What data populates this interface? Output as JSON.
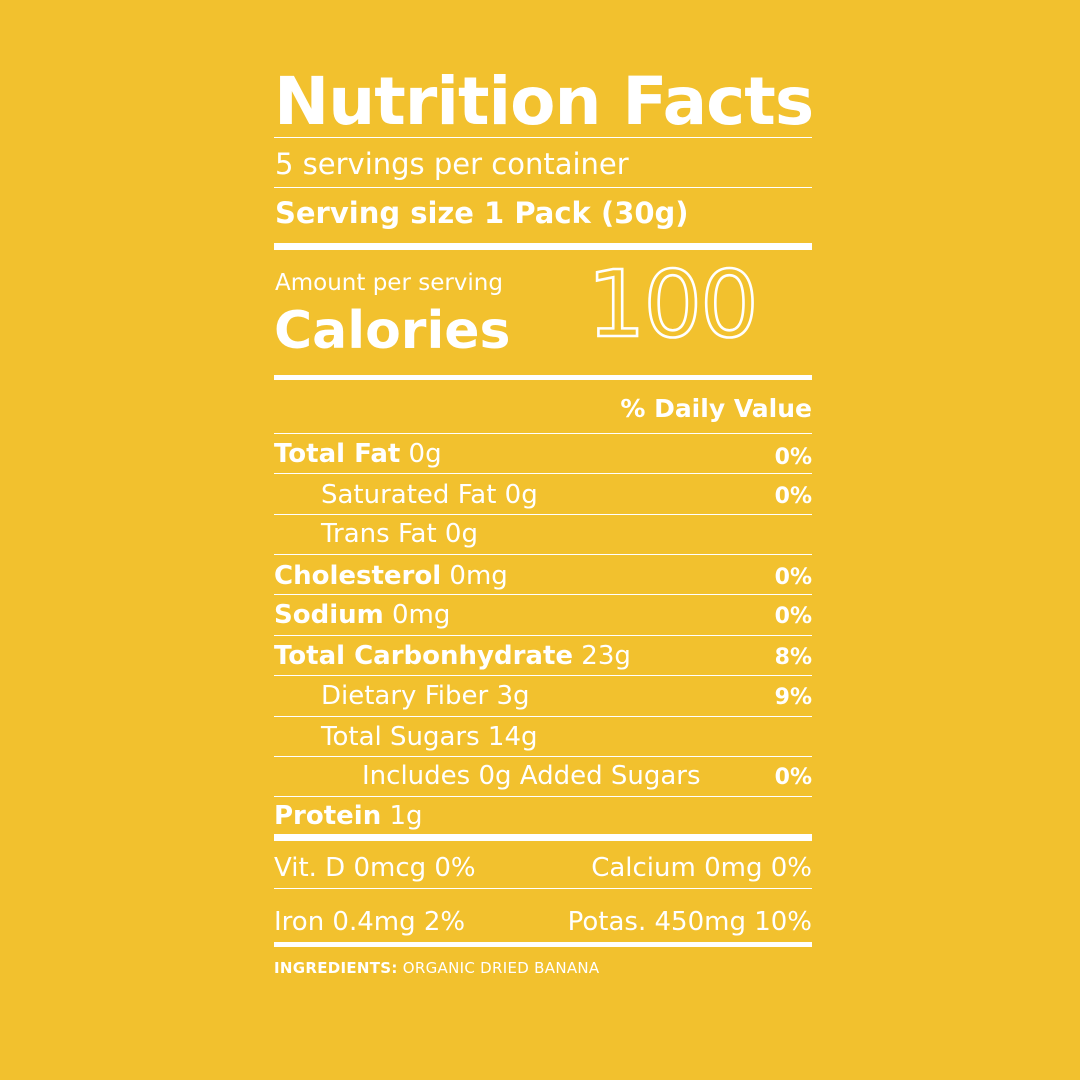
{
  "label": {
    "title": "Nutrition Facts",
    "servings_per_container": "5 servings per container",
    "serving_size": "Serving size 1 Pack (30g)",
    "amount_per_serving": "Amount per serving",
    "calories_label": "Calories",
    "calories_value": "100",
    "daily_value_header": "% Daily Value",
    "nutrients": [
      {
        "name": "Total Fat",
        "amount": " 0g",
        "dv": "0%"
      },
      {
        "name": "Saturated Fat",
        "amount": " 0g",
        "dv": "0%"
      },
      {
        "name": "Trans Fat",
        "amount": " 0g",
        "dv": ""
      },
      {
        "name": "Cholesterol",
        "amount": " 0mg",
        "dv": "0%"
      },
      {
        "name": "Sodium",
        "amount": " 0mg",
        "dv": "0%"
      },
      {
        "name": "Total Carbonhydrate",
        "amount": " 23g",
        "dv": "8%"
      },
      {
        "name": "Dietary Fiber",
        "amount": " 3g",
        "dv": "9%"
      },
      {
        "name": "Total Sugars",
        "amount": " 14g",
        "dv": ""
      },
      {
        "name": "Includes 0g Added Sugars",
        "amount": "",
        "dv": "0%"
      },
      {
        "name": "Protein",
        "amount": " 1g",
        "dv": ""
      }
    ],
    "vitamins": {
      "vit_d": "Vit. D 0mcg 0%",
      "calcium": "Calcium 0mg 0%",
      "iron": "Iron 0.4mg 2%",
      "potassium": "Potas. 450mg 10%"
    },
    "ingredients_label": "INGREDIENTS:",
    "ingredients_text": " ORGANIC DRIED BANANA"
  },
  "colors": {
    "background": "#F2C12E",
    "text": "#FFFFFF"
  }
}
